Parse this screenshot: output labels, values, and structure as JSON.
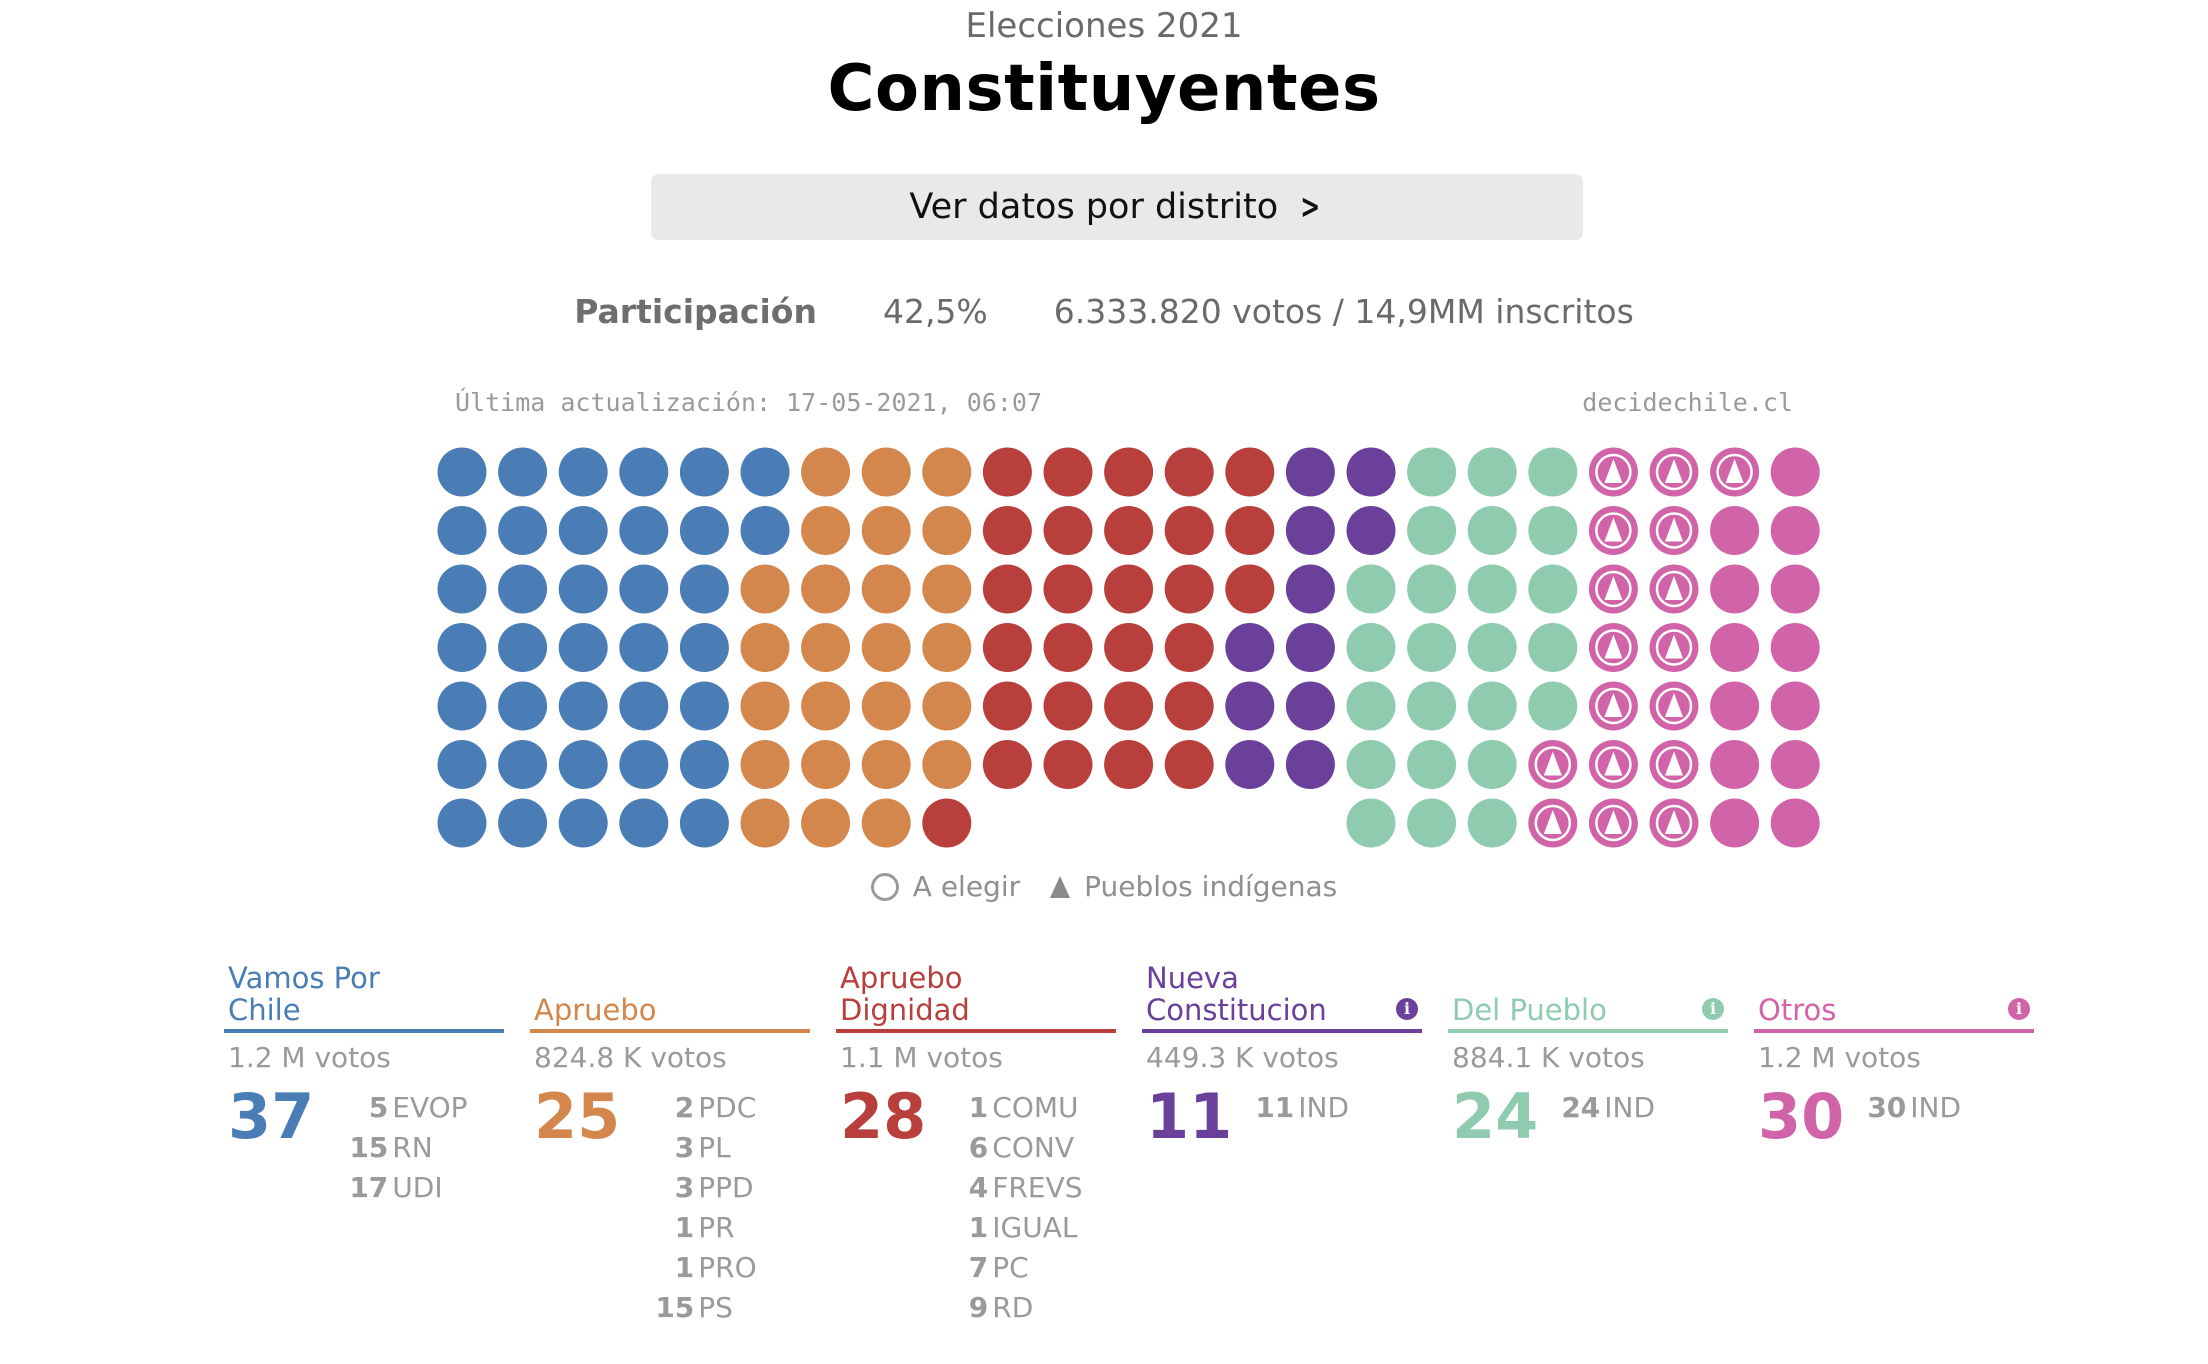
{
  "header": {
    "supertitle": "Elecciones 2021",
    "title": "Constituyentes",
    "cta_label": "Ver datos por distrito"
  },
  "participation": {
    "label": "Participación",
    "percent": "42,5%",
    "detail": "6.333.820 votos / 14,9MM inscritos"
  },
  "meta": {
    "last_update": "Última actualización: 17-05-2021, 06:07",
    "source": "decidechile.cl"
  },
  "legend": {
    "to_elect": "A elegir",
    "indigenous": "Pueblos indígenas"
  },
  "seat_grid": {
    "rows": 7,
    "columns": [
      [
        "blue",
        "blue",
        "blue",
        "blue",
        "blue",
        "blue",
        "blue"
      ],
      [
        "blue",
        "blue",
        "blue",
        "blue",
        "blue",
        "blue",
        "blue"
      ],
      [
        "blue",
        "blue",
        "blue",
        "blue",
        "blue",
        "blue",
        "blue"
      ],
      [
        "blue",
        "blue",
        "blue",
        "blue",
        "blue",
        "blue",
        "blue"
      ],
      [
        "blue",
        "blue",
        "blue",
        "blue",
        "blue",
        "blue",
        "blue"
      ],
      [
        "blue",
        "blue",
        "orange",
        "orange",
        "orange",
        "orange",
        "orange"
      ],
      [
        "orange",
        "orange",
        "orange",
        "orange",
        "orange",
        "orange",
        "orange"
      ],
      [
        "orange",
        "orange",
        "orange",
        "orange",
        "orange",
        "orange",
        "orange"
      ],
      [
        "orange",
        "orange",
        "orange",
        "orange",
        "orange",
        "orange",
        "red"
      ],
      [
        "red",
        "red",
        "red",
        "red",
        "red",
        "red",
        null
      ],
      [
        "red",
        "red",
        "red",
        "red",
        "red",
        "red",
        null
      ],
      [
        "red",
        "red",
        "red",
        "red",
        "red",
        "red",
        null
      ],
      [
        "red",
        "red",
        "red",
        "red",
        "red",
        "red",
        null
      ],
      [
        "red",
        "red",
        "red",
        "purple",
        "purple",
        "purple",
        null
      ],
      [
        "purple",
        "purple",
        "purple",
        "purple",
        "purple",
        "purple",
        null
      ],
      [
        "purple",
        "purple",
        "green",
        "green",
        "green",
        "green",
        "green"
      ],
      [
        "green",
        "green",
        "green",
        "green",
        "green",
        "green",
        "green"
      ],
      [
        "green",
        "green",
        "green",
        "green",
        "green",
        "green",
        "green"
      ],
      [
        "green",
        "green",
        "green",
        "green",
        "green",
        "pinki",
        "pinki"
      ],
      [
        "pinki",
        "pinki",
        "pinki",
        "pinki",
        "pinki",
        "pinki",
        "pinki"
      ],
      [
        "pinki",
        "pinki",
        "pinki",
        "pinki",
        "pinki",
        "pinki",
        "pinki"
      ],
      [
        "pinki",
        "pink",
        "pink",
        "pink",
        "pink",
        "pink",
        "pink"
      ],
      [
        "pink",
        "pink",
        "pink",
        "pink",
        "pink",
        "pink",
        "pink"
      ]
    ],
    "colors": {
      "blue": "#4a7db5",
      "orange": "#d4874c",
      "red": "#b83f3c",
      "purple": "#6a409a",
      "green": "#8fcbae",
      "pink": "#d164a8",
      "pinki": "#d164a8"
    }
  },
  "parties": [
    {
      "name": "Vamos Por Chile",
      "color": "#4a7db5",
      "votes": "1.2 M votos",
      "total": "37",
      "info": false,
      "subs": [
        {
          "n": "5",
          "p": "EVOP"
        },
        {
          "n": "15",
          "p": "RN"
        },
        {
          "n": "17",
          "p": "UDI"
        }
      ]
    },
    {
      "name": "Apruebo",
      "color": "#d4874c",
      "votes": "824.8 K votos",
      "total": "25",
      "info": false,
      "subs": [
        {
          "n": "2",
          "p": "PDC"
        },
        {
          "n": "3",
          "p": "PL"
        },
        {
          "n": "3",
          "p": "PPD"
        },
        {
          "n": "1",
          "p": "PR"
        },
        {
          "n": "1",
          "p": "PRO"
        },
        {
          "n": "15",
          "p": "PS"
        }
      ]
    },
    {
      "name": "Apruebo Dignidad",
      "color": "#b83f3c",
      "votes": "1.1 M votos",
      "total": "28",
      "info": false,
      "subs": [
        {
          "n": "1",
          "p": "COMU"
        },
        {
          "n": "6",
          "p": "CONV"
        },
        {
          "n": "4",
          "p": "FREVS"
        },
        {
          "n": "1",
          "p": "IGUAL"
        },
        {
          "n": "7",
          "p": "PC"
        },
        {
          "n": "9",
          "p": "RD"
        }
      ]
    },
    {
      "name": "Nueva Constitucion",
      "color": "#6a409a",
      "votes": "449.3 K votos",
      "total": "11",
      "info": true,
      "subs": [
        {
          "n": "11",
          "p": "IND"
        }
      ]
    },
    {
      "name": "Del Pueblo",
      "color": "#8fcbae",
      "votes": "884.1 K votos",
      "total": "24",
      "info": true,
      "subs": [
        {
          "n": "24",
          "p": "IND"
        }
      ]
    },
    {
      "name": "Otros",
      "color": "#d164a8",
      "votes": "1.2 M votos",
      "total": "30",
      "info": true,
      "subs": [
        {
          "n": "30",
          "p": "IND"
        }
      ]
    }
  ]
}
